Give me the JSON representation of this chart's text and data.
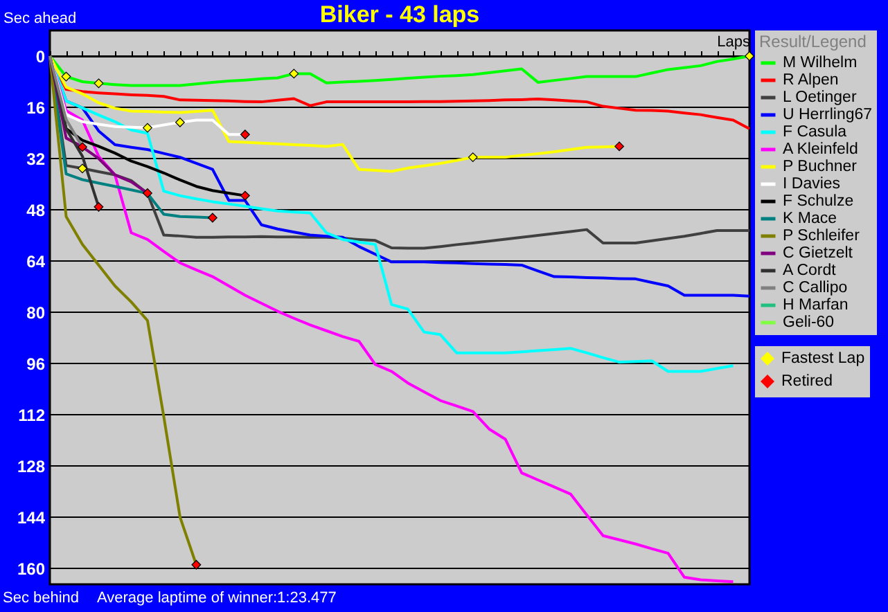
{
  "chart_data": {
    "type": "line",
    "title": "Biker - 43 laps",
    "xlabel": "Laps",
    "ylabel": "Sec ahead",
    "legend_title": "Result/Legend",
    "annotations": [
      "Sec behind",
      "Average laptime of winner:1:23.477"
    ],
    "categories": [
      null,
      null,
      null,
      null,
      null,
      null,
      null,
      null,
      null,
      null,
      null,
      null,
      null,
      null,
      null,
      null,
      null,
      null,
      null,
      null,
      null,
      null,
      null,
      null,
      null,
      null,
      null,
      null,
      null,
      null,
      null,
      null,
      null,
      null,
      null,
      null,
      null,
      null,
      null,
      null,
      null,
      null,
      null,
      null
    ],
    "ylim": [
      165,
      -8
    ],
    "yticks": [
      0,
      16,
      32,
      48,
      64,
      80,
      96,
      112,
      128,
      144,
      160
    ],
    "tick_labels": "y",
    "grid": "y",
    "legend": "right",
    "line_style": "solid",
    "series": [
      {
        "name": "M Wilhelm",
        "color": "#00ff00",
        "values": [
          0,
          6.4,
          8,
          8.5,
          8.9,
          9.2,
          9.2,
          9.2,
          9.2,
          8.7,
          8.2,
          7.8,
          7.5,
          7.1,
          6.8,
          5.5,
          5.5,
          8.4,
          8.1,
          7.9,
          7.6,
          7.3,
          6.9,
          6.6,
          6.3,
          6.1,
          5.8,
          5.2,
          4.6,
          4,
          8.2,
          7.6,
          7,
          6.4,
          6.4,
          6.4,
          6.4,
          5.3,
          4.2,
          3.6,
          3,
          1.7,
          0.9,
          0
        ]
      },
      {
        "name": "R Alpen",
        "color": "#ff0000",
        "values": [
          0,
          10.4,
          11.1,
          11.5,
          11.8,
          12.1,
          12.3,
          12.6,
          13.7,
          13.8,
          13.9,
          14,
          14.2,
          14.3,
          13.8,
          13.3,
          15.5,
          14.3,
          14.3,
          14.3,
          14.3,
          14.3,
          14.3,
          14.2,
          14.2,
          14.1,
          14,
          13.9,
          13.7,
          13.6,
          13.4,
          13.7,
          14,
          14.3,
          15.7,
          16.3,
          16.9,
          17,
          17.2,
          17.8,
          18.3,
          19.2,
          20,
          22.7
        ]
      },
      {
        "name": "L Oetinger",
        "color": "#404040",
        "values": [
          0,
          34.2,
          35.1,
          36.1,
          37.1,
          38.9,
          42.9,
          55.9,
          56.2,
          56.6,
          56.6,
          56.5,
          56.5,
          56.4,
          56.5,
          56.5,
          56.6,
          56.6,
          56.9,
          57.3,
          57.6,
          59.9,
          60,
          60,
          59.5,
          58.9,
          58.4,
          57.8,
          57.2,
          56.6,
          56,
          55.4,
          54.8,
          54.2,
          58.4,
          58.4,
          58.4,
          57.7,
          57,
          56.3,
          55.4,
          54.5,
          54.5,
          54.5
        ]
      },
      {
        "name": "U Herrling67",
        "color": "#0000ff",
        "values": [
          0,
          14,
          16.2,
          23.4,
          27.7,
          28.5,
          29.2,
          30.4,
          31.6,
          33.5,
          35.4,
          45.1,
          45.1,
          52.7,
          54,
          55,
          55.9,
          56.3,
          56.6,
          59.5,
          61.9,
          64.3,
          64.3,
          64.3,
          64.5,
          64.6,
          64.8,
          65,
          65.1,
          65.3,
          67.1,
          68.9,
          69,
          69.2,
          69.3,
          69.5,
          69.6,
          70.7,
          71.8,
          74.7,
          74.7,
          74.7,
          74.7,
          75
        ]
      },
      {
        "name": "F Casula",
        "color": "#00ffff",
        "values": [
          0,
          14,
          16.2,
          18.4,
          20.5,
          23.1,
          24.1,
          42.2,
          43.6,
          44.6,
          45.5,
          46.2,
          46.9,
          47.7,
          48.4,
          48.7,
          49,
          55.2,
          57.3,
          58.1,
          58.8,
          77.6,
          79,
          86.2,
          87,
          92.7,
          92.7,
          92.7,
          92.7,
          92.4,
          92,
          91.7,
          91.3,
          92.7,
          94.2,
          95.6,
          95.4,
          95.2,
          98.5,
          98.5,
          98.5,
          97.6,
          96.7,
          null
        ]
      },
      {
        "name": "A Kleinfeld",
        "color": "#ff00ff",
        "values": [
          0,
          17,
          20,
          31.3,
          37.1,
          55.2,
          57.3,
          61,
          64.6,
          66.8,
          68.9,
          71.8,
          74.7,
          77.2,
          79.7,
          81.9,
          84,
          85.8,
          87.6,
          89.1,
          96.3,
          98.5,
          102.1,
          104.9,
          107.6,
          109.3,
          111,
          116.5,
          119.7,
          130.2,
          132.4,
          134.6,
          136.8,
          143.3,
          149.8,
          151.1,
          152.4,
          153.9,
          155.3,
          162.8,
          163.6,
          163.9,
          164.2,
          null
        ]
      },
      {
        "name": "P Buchner",
        "color": "#ffff00",
        "values": [
          0,
          9.7,
          11.8,
          14.6,
          16.3,
          17.2,
          17.3,
          17.5,
          17.6,
          17.3,
          16.9,
          26.7,
          26.9,
          27.2,
          27.4,
          27.7,
          27.9,
          28.2,
          27.6,
          35.4,
          35.7,
          36,
          35,
          34.3,
          33.5,
          32.6,
          31.6,
          31.6,
          31.6,
          31,
          30.5,
          29.9,
          29.2,
          28.5,
          28.4,
          28.2,
          null,
          null,
          null,
          null,
          null,
          null,
          null,
          null
        ]
      },
      {
        "name": "I Davies",
        "color": "#ffffff",
        "values": [
          0,
          18.3,
          20.5,
          21.3,
          22,
          22.2,
          22.4,
          21.5,
          20.7,
          20,
          20,
          24.5,
          24.5,
          null,
          null,
          null,
          null,
          null,
          null,
          null,
          null,
          null,
          null,
          null,
          null,
          null,
          null,
          null,
          null,
          null,
          null,
          null,
          null,
          null,
          null,
          null,
          null,
          null,
          null,
          null,
          null,
          null,
          null,
          null
        ]
      },
      {
        "name": "F Schulze",
        "color": "#000000",
        "values": [
          0,
          22.7,
          26.3,
          28.2,
          30.3,
          32.8,
          34.5,
          36.5,
          38.7,
          40.7,
          42,
          42.8,
          43.6,
          null,
          null,
          null,
          null,
          null,
          null,
          null,
          null,
          null,
          null,
          null,
          null,
          null,
          null,
          null,
          null,
          null,
          null,
          null,
          null,
          null,
          null,
          null,
          null,
          null,
          null,
          null,
          null,
          null,
          null,
          null
        ]
      },
      {
        "name": "K Mace",
        "color": "#008080",
        "values": [
          0,
          36.8,
          38.6,
          39.7,
          40.7,
          41.8,
          42.9,
          49.4,
          50.1,
          50.3,
          50.5,
          null,
          null,
          null,
          null,
          null,
          null,
          null,
          null,
          null,
          null,
          null,
          null,
          null,
          null,
          null,
          null,
          null,
          null,
          null,
          null,
          null,
          null,
          null,
          null,
          null,
          null,
          null,
          null,
          null,
          null,
          null,
          null,
          null
        ]
      },
      {
        "name": "P Schleifer",
        "color": "#808000",
        "values": [
          0,
          50.1,
          58.8,
          65.3,
          71.8,
          76.8,
          82.6,
          112.6,
          144,
          158.9,
          null,
          null,
          null,
          null,
          null,
          null,
          null,
          null,
          null,
          null,
          null,
          null,
          null,
          null,
          null,
          null,
          null,
          null,
          null,
          null,
          null,
          null,
          null,
          null,
          null,
          null,
          null,
          null,
          null,
          null,
          null,
          null,
          null,
          null
        ]
      },
      {
        "name": "C Gietzelt",
        "color": "#800080",
        "values": [
          0,
          25.6,
          28.4,
          32,
          37.1,
          39.3,
          42.8,
          null,
          null,
          null,
          null,
          null,
          null,
          null,
          null,
          null,
          null,
          null,
          null,
          null,
          null,
          null,
          null,
          null,
          null,
          null,
          null,
          null,
          null,
          null,
          null,
          null,
          null,
          null,
          null,
          null,
          null,
          null,
          null,
          null,
          null,
          null,
          null,
          null
        ]
      },
      {
        "name": "A Cordt",
        "color": "#303030",
        "values": [
          0,
          22.7,
          31.3,
          47.1,
          null,
          null,
          null,
          null,
          null,
          null,
          null,
          null,
          null,
          null,
          null,
          null,
          null,
          null,
          null,
          null,
          null,
          null,
          null,
          null,
          null,
          null,
          null,
          null,
          null,
          null,
          null,
          null,
          null,
          null,
          null,
          null,
          null,
          null,
          null,
          null,
          null,
          null,
          null,
          null
        ]
      },
      {
        "name": "C Callipo",
        "color": "#808080",
        "values": [
          0,
          19.8,
          28.4,
          null,
          null,
          null,
          null,
          null,
          null,
          null,
          null,
          null,
          null,
          null,
          null,
          null,
          null,
          null,
          null,
          null,
          null,
          null,
          null,
          null,
          null,
          null,
          null,
          null,
          null,
          null,
          null,
          null,
          null,
          null,
          null,
          null,
          null,
          null,
          null,
          null,
          null,
          null,
          null,
          null
        ]
      },
      {
        "name": "H Marfan",
        "color": "#20c080",
        "values": [
          null,
          null,
          null,
          null,
          null,
          null,
          null,
          null,
          null,
          null,
          null,
          null,
          null,
          null,
          null,
          null,
          null,
          null,
          null,
          null,
          null,
          null,
          null,
          null,
          null,
          null,
          null,
          null,
          null,
          null,
          null,
          null,
          null,
          null,
          null,
          null,
          null,
          null,
          null,
          null,
          null,
          null,
          null,
          null
        ]
      },
      {
        "name": "   Geli-60",
        "color": "#80ff40",
        "values": [
          null,
          null,
          null,
          null,
          null,
          null,
          null,
          null,
          null,
          null,
          null,
          null,
          null,
          null,
          null,
          null,
          null,
          null,
          null,
          null,
          null,
          null,
          null,
          null,
          null,
          null,
          null,
          null,
          null,
          null,
          null,
          null,
          null,
          null,
          null,
          null,
          null,
          null,
          null,
          null,
          null,
          null,
          null,
          null
        ]
      },
      {
        "name": "Fastest Lap",
        "type": "scatter",
        "marker": "diamond",
        "color": "#ffff00",
        "values": [
          null,
          6.4,
          35.1,
          8.5,
          null,
          null,
          22.4,
          null,
          20.7,
          null,
          null,
          null,
          null,
          null,
          null,
          5.5,
          null,
          null,
          null,
          null,
          null,
          null,
          null,
          null,
          null,
          null,
          31.6,
          null,
          null,
          null,
          null,
          null,
          null,
          null,
          null,
          null,
          null,
          null,
          null,
          null,
          null,
          null,
          null,
          0
        ]
      },
      {
        "name": "Retired",
        "type": "scatter",
        "marker": "diamond",
        "color": "#ff0000",
        "values": [
          null,
          null,
          28.4,
          47.1,
          null,
          null,
          42.8,
          null,
          null,
          158.9,
          50.5,
          null,
          43.6,
          null,
          null,
          null,
          null,
          null,
          null,
          null,
          null,
          null,
          null,
          null,
          null,
          null,
          null,
          null,
          null,
          null,
          null,
          null,
          null,
          null,
          null,
          28.2,
          null,
          null,
          null,
          null,
          null,
          null,
          null,
          null
        ]
      },
      {
        "type": "scatter",
        "marker": "diamond",
        "color": "#ff0000",
        "values": [
          null,
          null,
          null,
          null,
          null,
          null,
          null,
          null,
          null,
          null,
          null,
          null,
          24.5,
          null,
          null,
          null,
          null,
          null,
          null,
          null,
          null,
          null,
          null,
          null,
          null,
          null,
          null,
          null,
          null,
          null,
          null,
          null,
          null,
          null,
          null,
          null,
          null,
          null,
          null,
          null,
          null,
          null,
          null,
          null
        ]
      }
    ]
  }
}
